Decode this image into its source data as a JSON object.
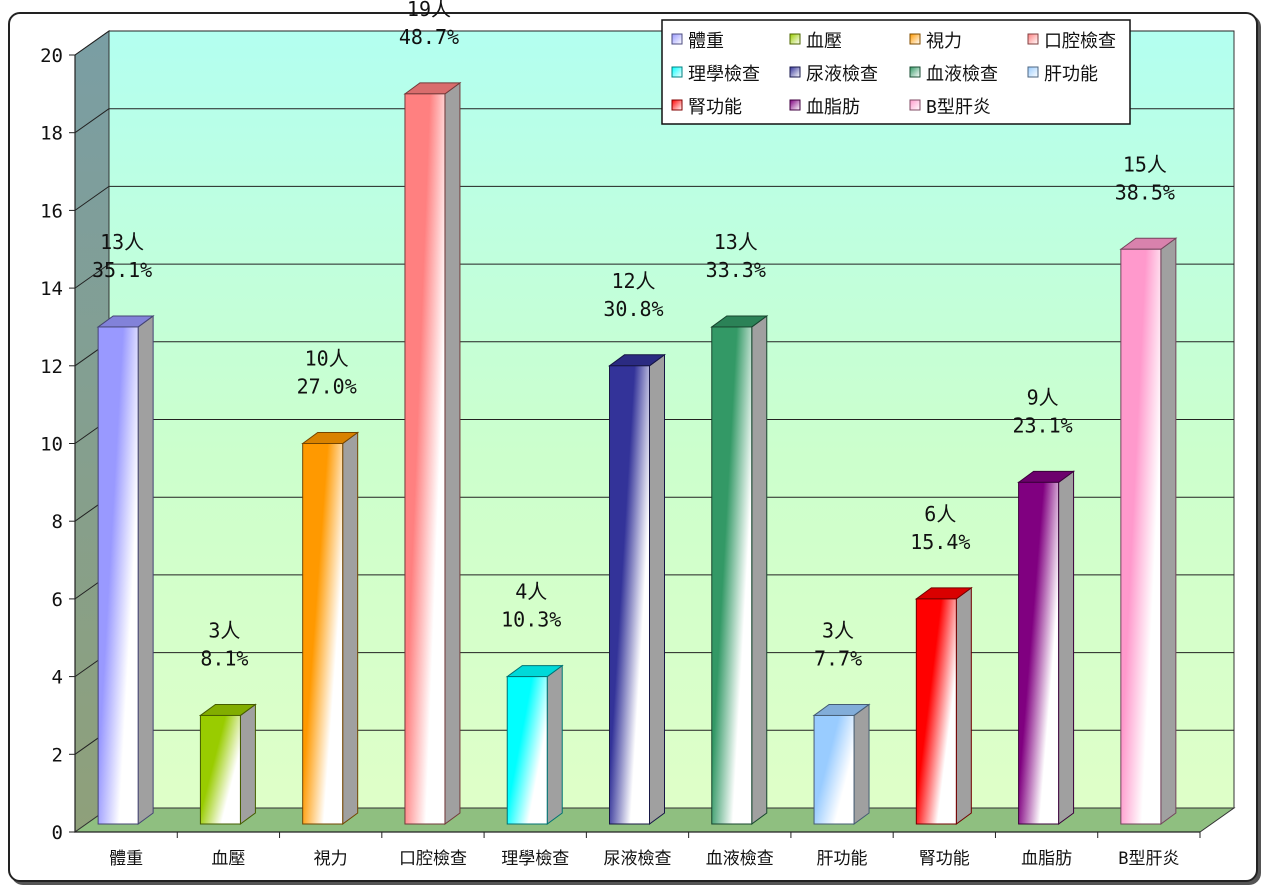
{
  "chart_data": {
    "type": "bar",
    "title": "",
    "xlabel": "",
    "ylabel": "",
    "ylim": [
      0,
      20
    ],
    "yticks": [
      0,
      2,
      4,
      6,
      8,
      10,
      12,
      14,
      16,
      18,
      20
    ],
    "grid": true,
    "legend_position": "top-right",
    "categories": [
      "體重",
      "血壓",
      "視力",
      "口腔檢查",
      "理學檢查",
      "尿液檢查",
      "血液檢查",
      "肝功能",
      "腎功能",
      "血脂肪",
      "B型肝炎"
    ],
    "values": [
      13,
      3,
      10,
      19,
      4,
      12,
      13,
      3,
      6,
      9,
      15
    ],
    "count_labels": [
      "13人",
      "3人",
      "10人",
      "19人",
      "4人",
      "12人",
      "13人",
      "3人",
      "6人",
      "9人",
      "15人"
    ],
    "percent_labels": [
      "35.1%",
      "8.1%",
      "27.0%",
      "48.7%",
      "10.3%",
      "30.8%",
      "33.3%",
      "7.7%",
      "15.4%",
      "23.1%",
      "38.5%"
    ],
    "colors": [
      "#9999ff",
      "#99cc00",
      "#ff9900",
      "#ff8080",
      "#00ffff",
      "#333399",
      "#339966",
      "#99ccff",
      "#ff0000",
      "#800080",
      "#ff99cc"
    ],
    "legend": [
      "體重",
      "血壓",
      "視力",
      "口腔檢查",
      "理學檢查",
      "尿液檢查",
      "血液檢查",
      "肝功能",
      "腎功能",
      "血脂肪",
      "B型肝炎"
    ]
  }
}
